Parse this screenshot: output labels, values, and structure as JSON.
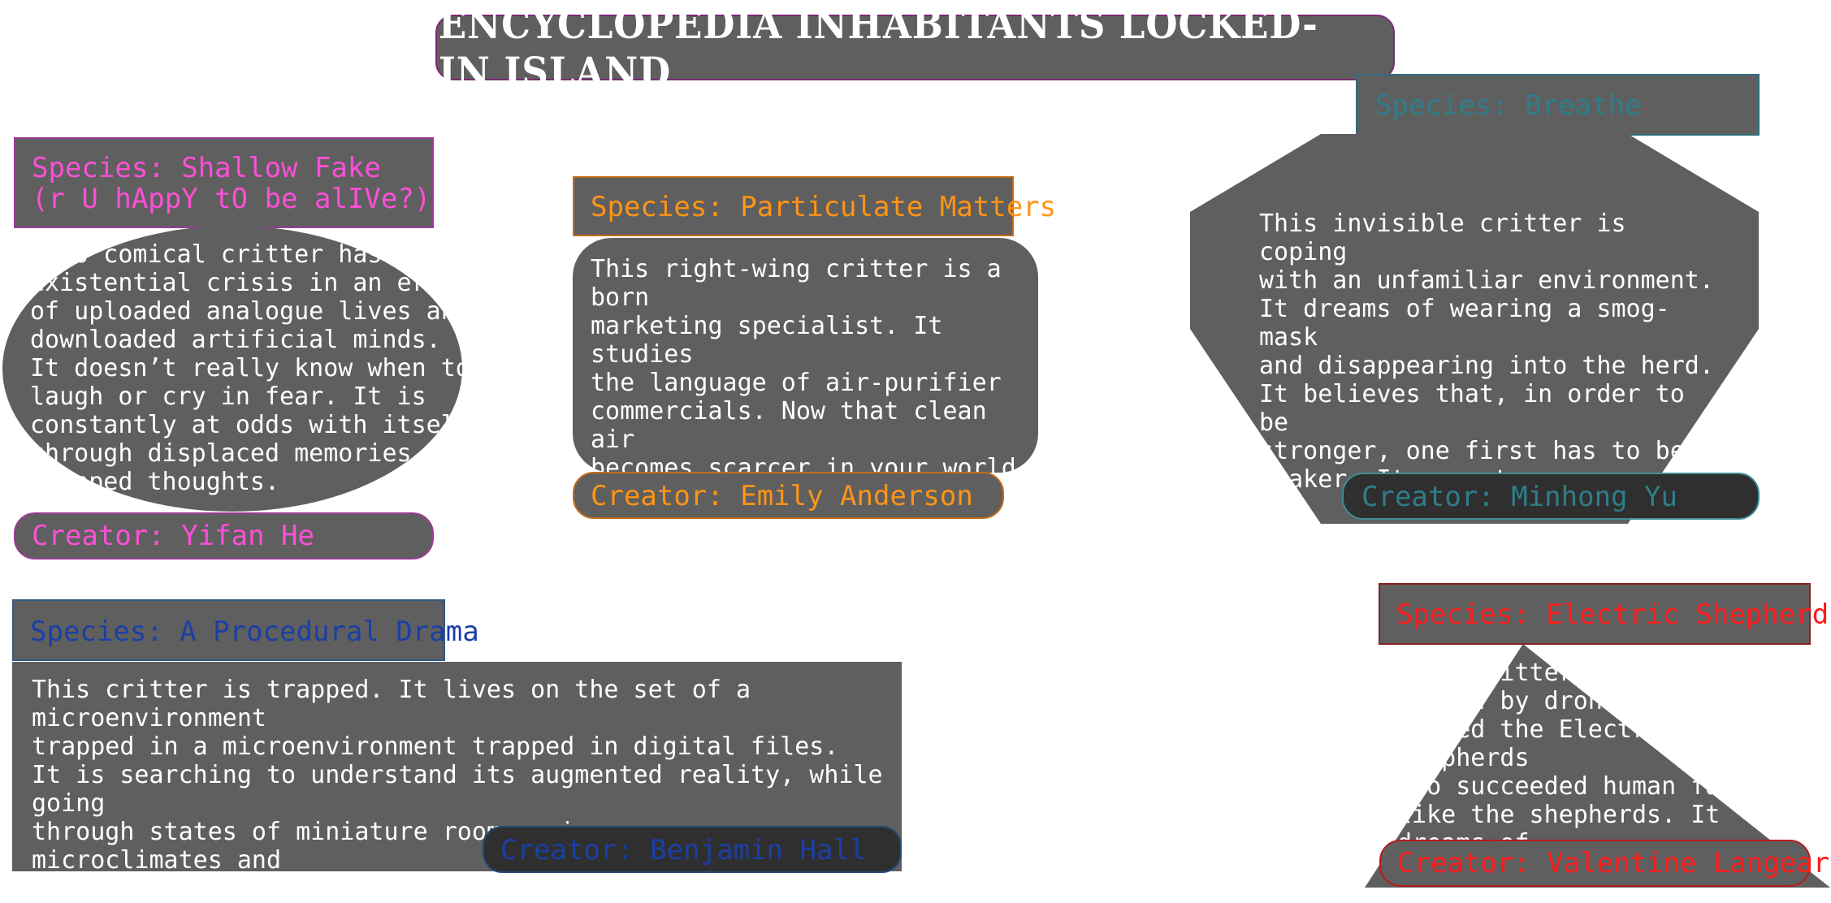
{
  "title": "ENCYCLOPEDIA INHABITANTS LOCKED-IN ISLAND",
  "colors": {
    "panel": "#5f5f5f",
    "pink": "#ff4fd8",
    "orange": "#ff9416",
    "teal": "#2e7e8a",
    "blue": "#1a3fa6",
    "red": "#ff1a1a",
    "body_text": "#ffffff"
  },
  "cards": [
    {
      "species": "Species: Shallow Fake\n(r U hAppY tO be alIVe?)",
      "description": "This comical critter has an\nexistential crisis in an era\nof uploaded analogue lives and\ndownloaded artificial minds.\nIt doesn’t really know when to\nlaugh or cry in fear. It is\nconstantly at odds with itself\nthrough displaced memories and\nswapped thoughts.",
      "creator": "Creator: Yifan He"
    },
    {
      "species": "Species: Particulate Matters",
      "description": "This right-wing critter is a born\nmarketing specialist. It studies\nthe language of air-purifier\ncommercials. Now that clean air\nbecomes scarcer in your world, it\nknows how to recommend products\nclaiming to restore air quality.",
      "creator": "Creator: Emily Anderson"
    },
    {
      "species": "Species: Breathe",
      "description": "This invisible critter is coping\nwith an unfamiliar environment.\nIt dreams of wearing a smog-mask\nand disappearing into the herd.\nIt believes that, in order to be\nstronger, one first has to be\nweaker. It uses transparency as a\nform of camouflage.",
      "creator": "Creator: Minhong Yu"
    },
    {
      "species": "Species: A Procedural Drama",
      "description": "This critter is trapped. It lives on the set of a microenvironment\ntrapped in a microenvironment trapped in digital files.\nIt is searching to understand its augmented reality, while going\nthrough states of miniature rooms, microcosms, microclimates and\nmicroaggressions. It also likes to watch NCIS.",
      "creator": "Creator: Benjamin Hall"
    },
    {
      "species": "Species: Electric Shepherds",
      "description": "This critter has been\nraised by drone-overseers\ncalled the Electric Shepherds\nwho succeeded human farmers,\nlike the shepherds. It dreams of\nfreedom.",
      "creator": "Creator: Valentine Langeard"
    }
  ]
}
